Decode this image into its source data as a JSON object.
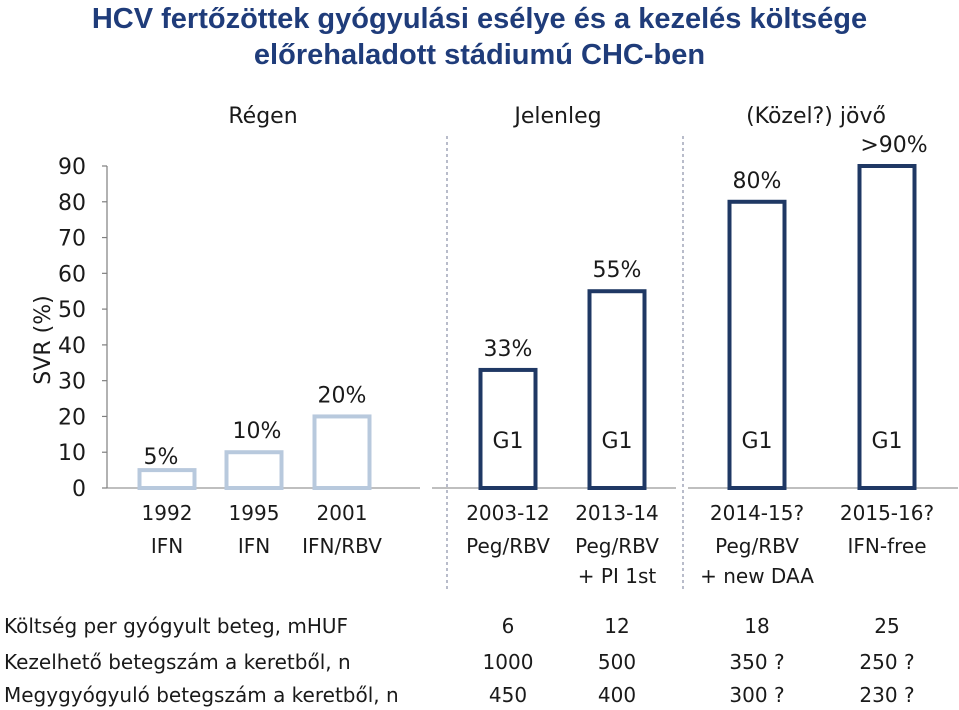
{
  "title_line1": "HCV fertőzöttek gyógyulási esélye és a kezelés költsége",
  "title_line2": "előrehaladott stádiumú CHC-ben",
  "sections": [
    "Régen",
    "Jelenleg",
    "(Közel?) jövő"
  ],
  "colors": {
    "title": "#1f3c7a",
    "bar_light": "#b8c9dd",
    "bar_dark": "#1f3864",
    "text": "#1a1a1a"
  },
  "chart_data": {
    "type": "bar",
    "ylabel": "SVR (%)",
    "ylim": [
      0,
      90
    ],
    "yticks": [
      0,
      10,
      20,
      30,
      40,
      50,
      60,
      70,
      80,
      90
    ],
    "grid": false,
    "categories": [
      "1992",
      "1995",
      "2001",
      "2003-12",
      "2013-14",
      "2014-15?",
      "2015-16?"
    ],
    "treatments": [
      [
        "IFN"
      ],
      [
        "IFN"
      ],
      [
        "IFN/RBV"
      ],
      [
        "Peg/RBV"
      ],
      [
        "Peg/RBV",
        "+ PI 1st"
      ],
      [
        "Peg/RBV",
        "+ new DAA"
      ],
      [
        "IFN-free"
      ]
    ],
    "values": [
      5,
      10,
      20,
      33,
      55,
      80,
      90
    ],
    "value_labels": [
      "5%",
      "10%",
      "20%",
      "33%",
      "55%",
      "80%",
      ">90%"
    ],
    "genotype_labels": [
      "",
      "",
      "",
      "G1",
      "G1",
      "G1",
      "G1"
    ],
    "style": [
      "light",
      "light",
      "light",
      "dark",
      "dark",
      "dark",
      "dark"
    ]
  },
  "table": {
    "rows": [
      {
        "label": "Költség per gyógyult beteg, mHUF",
        "values": [
          "6",
          "12",
          "18",
          "25"
        ]
      },
      {
        "label": "Kezelhető betegszám a keretből, n",
        "values": [
          "1000",
          "500",
          "350 ?",
          "250 ?"
        ]
      },
      {
        "label": "Megygyógyuló betegszám a keretből, n",
        "values": [
          "450",
          "400",
          "300 ?",
          "230 ?"
        ]
      }
    ]
  }
}
